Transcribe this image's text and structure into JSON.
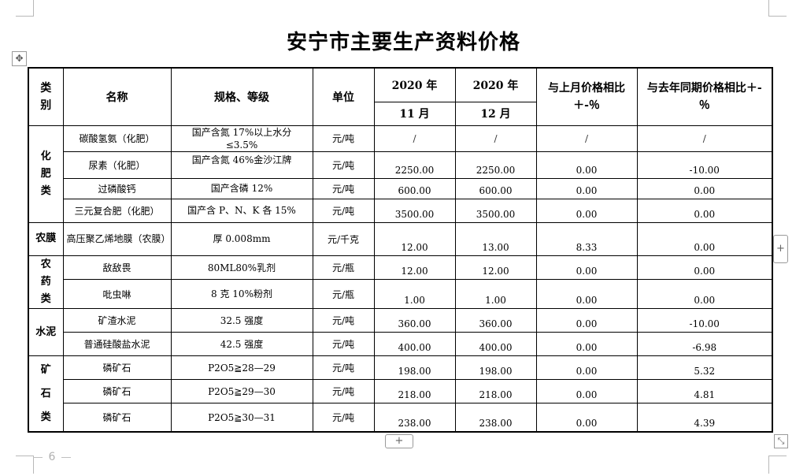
{
  "title": "安宁市主要生产资料价格",
  "page_number": "6",
  "headers": {
    "category": "类别",
    "name": "名称",
    "spec": "规格、等级",
    "unit": "单位",
    "nov_year": "2020 年",
    "nov_month": "11 月",
    "dec_year": "2020 年",
    "dec_month": "12 月",
    "mom": "与上月价格相比＋-％",
    "yoy": "与去年同期价格相比＋-％"
  },
  "categories": {
    "fertilizer": "化肥类",
    "film": "农膜",
    "pesticide": "农药类",
    "cement": "水泥",
    "ore": "矿石类"
  },
  "rows": [
    {
      "name": "碳酸氢氨（化肥）",
      "spec": "国产含氮 17%以上水分≤3.5%",
      "unit": "元/吨",
      "nov": "/",
      "dec": "/",
      "mom": "/",
      "yoy": "/"
    },
    {
      "name": "尿素（化肥）",
      "spec": "国产含氮 46%金沙江牌",
      "unit": "元/吨",
      "nov": "2250.00",
      "dec": "2250.00",
      "mom": "0.00",
      "yoy": "-10.00"
    },
    {
      "name": "过磷酸钙",
      "spec": "国产含磷 12%",
      "unit": "元/吨",
      "nov": "600.00",
      "dec": "600.00",
      "mom": "0.00",
      "yoy": "0.00"
    },
    {
      "name": "三元复合肥（化肥）",
      "spec": "国产含 P、N、K 各 15%",
      "unit": "元/吨",
      "nov": "3500.00",
      "dec": "3500.00",
      "mom": "0.00",
      "yoy": "0.00"
    },
    {
      "name": "高压聚乙烯地膜（农膜）",
      "spec": "厚 0.008mm",
      "unit": "元/千克",
      "nov": "12.00",
      "dec": "13.00",
      "mom": "8.33",
      "yoy": "0.00"
    },
    {
      "name": "敌敌畏",
      "spec": "80ML80%乳剂",
      "unit": "元/瓶",
      "nov": "12.00",
      "dec": "12.00",
      "mom": "0.00",
      "yoy": "0.00"
    },
    {
      "name": "吡虫啉",
      "spec": "8 克 10%粉剂",
      "unit": "元/瓶",
      "nov": "1.00",
      "dec": "1.00",
      "mom": "0.00",
      "yoy": "0.00"
    },
    {
      "name": "矿渣水泥",
      "spec": "32.5 强度",
      "unit": "元/吨",
      "nov": "360.00",
      "dec": "360.00",
      "mom": "0.00",
      "yoy": "-10.00"
    },
    {
      "name": "普通硅酸盐水泥",
      "spec": "42.5 强度",
      "unit": "元/吨",
      "nov": "400.00",
      "dec": "400.00",
      "mom": "0.00",
      "yoy": "-6.98"
    },
    {
      "name": "磷矿石",
      "spec": "P2O5≧28—29",
      "unit": "元/吨",
      "nov": "198.00",
      "dec": "198.00",
      "mom": "0.00",
      "yoy": "5.32"
    },
    {
      "name": "磷矿石",
      "spec": "P2O5≧29—30",
      "unit": "元/吨",
      "nov": "218.00",
      "dec": "218.00",
      "mom": "0.00",
      "yoy": "4.81"
    },
    {
      "name": "磷矿石",
      "spec": "P2O5≧30—31",
      "unit": "元/吨",
      "nov": "238.00",
      "dec": "238.00",
      "mom": "0.00",
      "yoy": "4.39"
    }
  ],
  "controls": {
    "move_handle": "✥",
    "add_column": "+",
    "add_row": "+",
    "resize": "⤡"
  }
}
